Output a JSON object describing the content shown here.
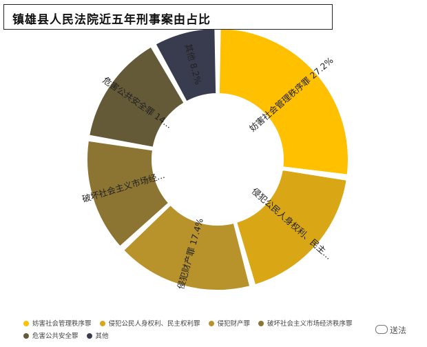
{
  "title": "镇雄县人民法院近五年刑事案由占比",
  "chart_data": {
    "type": "pie",
    "donut": true,
    "legend_position": "bottom",
    "slices": [
      {
        "name": "妨害社会管理秩序罪",
        "value": 27.2,
        "label": "妨害社会管理秩序罪  27.2%",
        "color": "#FFC000"
      },
      {
        "name": "侵犯公民人身权利、民主权利罪",
        "value": 18.5,
        "label": "侵犯公民人身权利、民主...",
        "color": "#D9A715"
      },
      {
        "name": "侵犯财产罪",
        "value": 17.4,
        "label": "侵犯财产罪  17.4%",
        "color": "#B8922A"
      },
      {
        "name": "破坏社会主义市场经济秩序罪",
        "value": 14.5,
        "label": "破坏社会主义市场经...",
        "color": "#8C7432"
      },
      {
        "name": "危害公共安全罪",
        "value": 14.2,
        "label": "危害公共安全罪  14...",
        "color": "#655A38"
      },
      {
        "name": "其他",
        "value": 8.2,
        "label": "其他  8.2%",
        "color": "#393C4E"
      }
    ]
  },
  "legend": [
    {
      "label": "妨害社会管理秩序罪",
      "color": "#FFC000"
    },
    {
      "label": "侵犯公民人身权利、民主权利罪",
      "color": "#D9A715"
    },
    {
      "label": "侵犯财产罪",
      "color": "#B8922A"
    },
    {
      "label": "破坏社会主义市场经济秩序罪",
      "color": "#8C7432"
    },
    {
      "label": "危害公共安全罪",
      "color": "#655A38"
    },
    {
      "label": "其他",
      "color": "#393C4E"
    }
  ],
  "watermark": "送法"
}
